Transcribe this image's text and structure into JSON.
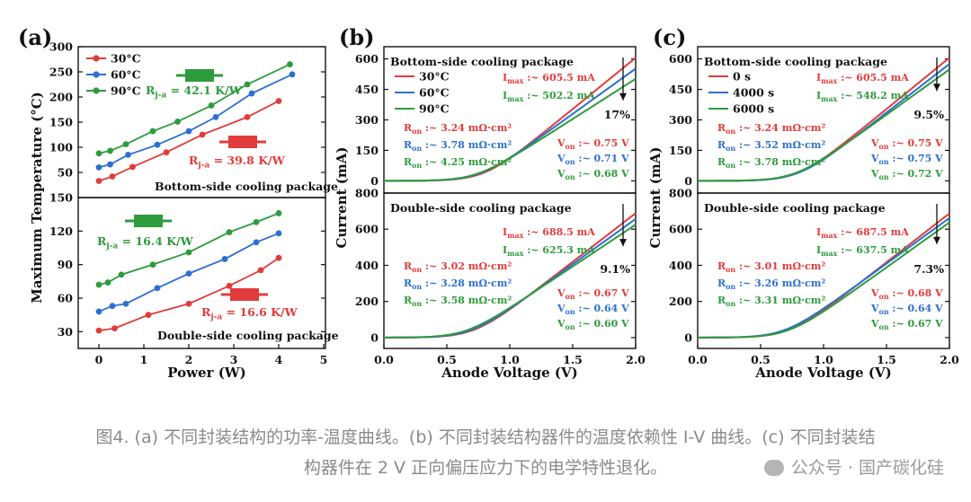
{
  "chart_data": [
    {
      "panel": "(a)",
      "type": "line",
      "xlabel": "Power (W)",
      "ylabel": "Maximum Temperature (°C)",
      "x_ticks": [
        "0",
        "1",
        "2",
        "3",
        "4",
        "5"
      ],
      "subplots": [
        {
          "title": "Bottom-side cooling package",
          "ylim": [
            0,
            300
          ],
          "y_ticks": [
            "50",
            "100",
            "150",
            "200",
            "250",
            "300"
          ],
          "legend": [
            "30°C",
            "60°C",
            "90°C"
          ],
          "series": [
            {
              "name": "30°C",
              "color": "#e23b3b",
              "x": [
                0,
                0.3,
                0.75,
                1.5,
                2.3,
                3.3,
                4.0
              ],
              "y": [
                33,
                42,
                61,
                90,
                125,
                160,
                192
              ]
            },
            {
              "name": "60°C",
              "color": "#2d6fd2",
              "x": [
                0,
                0.25,
                0.65,
                1.3,
                2.0,
                2.6,
                3.4,
                4.3
              ],
              "y": [
                60,
                66,
                85,
                105,
                132,
                160,
                207,
                245
              ]
            },
            {
              "name": "90°C",
              "color": "#2e9b3c",
              "x": [
                0,
                0.25,
                0.6,
                1.2,
                1.75,
                2.5,
                3.3,
                4.25
              ],
              "y": [
                88,
                93,
                106,
                132,
                151,
                183,
                225,
                265
              ]
            }
          ],
          "annotations": [
            {
              "text": "R",
              "sub": "j-a",
              "rest": " = 42.1 K/W",
              "color": "#2e9b3c"
            },
            {
              "text": "R",
              "sub": "j-a",
              "rest": " = 39.8 K/W",
              "color": "#e23b3b"
            }
          ]
        },
        {
          "title": "Double-side cooling  package",
          "ylim": [
            15,
            150
          ],
          "y_ticks": [
            "30",
            "60",
            "90",
            "120",
            "150"
          ],
          "series": [
            {
              "name": "30°C",
              "color": "#e23b3b",
              "x": [
                0,
                0.35,
                1.1,
                2.0,
                2.9,
                3.6,
                4.0
              ],
              "y": [
                31,
                33,
                45,
                55,
                71,
                85,
                96
              ]
            },
            {
              "name": "60°C",
              "color": "#2d6fd2",
              "x": [
                0,
                0.3,
                0.6,
                1.3,
                2.0,
                2.8,
                3.5,
                4.0
              ],
              "y": [
                48,
                53,
                55,
                69,
                82,
                95,
                110,
                118
              ]
            },
            {
              "name": "90°C",
              "color": "#2e9b3c",
              "x": [
                0,
                0.2,
                0.5,
                1.2,
                2.0,
                2.9,
                3.5,
                4.0
              ],
              "y": [
                72,
                74,
                81,
                90,
                101,
                119,
                128,
                136
              ]
            }
          ],
          "annotations": [
            {
              "text": "R",
              "sub": "j-a",
              "rest": " = 16.4 K/W",
              "color": "#2e9b3c"
            },
            {
              "text": "R",
              "sub": "j-a",
              "rest": " = 16.6 K/W",
              "color": "#e23b3b"
            }
          ]
        }
      ]
    },
    {
      "panel": "(b)",
      "type": "line",
      "xlabel": "Anode Voltage (V)",
      "ylabel": "Current (mA)",
      "xlim": [
        0,
        2.0
      ],
      "x_ticks": [
        "0.0",
        "0.5",
        "1.0",
        "1.5",
        "2.0"
      ],
      "subplots": [
        {
          "title": "Bottom-side cooling package",
          "ylim": [
            -60,
            660
          ],
          "y_ticks": [
            "0",
            "150",
            "300",
            "450",
            "600"
          ],
          "legend": [
            "30°C",
            "60°C",
            "90°C"
          ],
          "series": [
            {
              "name": "30°C",
              "color": "#e23b3b",
              "von": 0.75,
              "imax": 605.5
            },
            {
              "name": "60°C",
              "color": "#2d6fd2",
              "von": 0.71,
              "imax": 552
            },
            {
              "name": "90°C",
              "color": "#2e9b3c",
              "von": 0.68,
              "imax": 502.2
            }
          ],
          "imax_labels": [
            {
              "text": "I",
              "sub": "max",
              "rest": " :~ 605.5 mA",
              "color": "#e23b3b"
            },
            {
              "text": "I",
              "sub": "max",
              "rest": " :~ 502.2 mA",
              "color": "#2e9b3c"
            }
          ],
          "ron_labels": [
            {
              "text": "R",
              "sub": "on",
              "rest": " :~ 3.24 mΩ·cm²",
              "color": "#e23b3b"
            },
            {
              "text": "R",
              "sub": "on",
              "rest": " :~ 3.78 mΩ·cm²",
              "color": "#2d6fd2"
            },
            {
              "text": "R",
              "sub": "on",
              "rest": " :~ 4.25 mΩ·cm²",
              "color": "#2e9b3c"
            }
          ],
          "von_labels": [
            {
              "text": "V",
              "sub": "on",
              "rest": " :~ 0.75 V",
              "color": "#e23b3b"
            },
            {
              "text": "V",
              "sub": "on",
              "rest": " :~ 0.71 V",
              "color": "#2d6fd2"
            },
            {
              "text": "V",
              "sub": "on",
              "rest": " :~ 0.68 V",
              "color": "#2e9b3c"
            }
          ],
          "percent": "17%"
        },
        {
          "title": "Double-side cooling  package",
          "ylim": [
            -60,
            800
          ],
          "y_ticks": [
            "0",
            "200",
            "400",
            "600",
            "800"
          ],
          "series": [
            {
              "name": "30°C",
              "color": "#e23b3b",
              "von": 0.67,
              "imax": 688.5
            },
            {
              "name": "60°C",
              "color": "#2d6fd2",
              "von": 0.64,
              "imax": 657
            },
            {
              "name": "90°C",
              "color": "#2e9b3c",
              "von": 0.6,
              "imax": 625.3
            }
          ],
          "imax_labels": [
            {
              "text": "I",
              "sub": "max",
              "rest": " :~ 688.5 mA",
              "color": "#e23b3b"
            },
            {
              "text": "I",
              "sub": "max",
              "rest": " :~ 625.3 mA",
              "color": "#2e9b3c"
            }
          ],
          "ron_labels": [
            {
              "text": "R",
              "sub": "on",
              "rest": " :~ 3.02 mΩ·cm²",
              "color": "#e23b3b"
            },
            {
              "text": "R",
              "sub": "on",
              "rest": " :~ 3.28 mΩ·cm²",
              "color": "#2d6fd2"
            },
            {
              "text": "R",
              "sub": "on",
              "rest": " :~ 3.58 mΩ·cm²",
              "color": "#2e9b3c"
            }
          ],
          "von_labels": [
            {
              "text": "V",
              "sub": "on",
              "rest": " :~ 0.67 V",
              "color": "#e23b3b"
            },
            {
              "text": "V",
              "sub": "on",
              "rest": " :~ 0.64 V",
              "color": "#2d6fd2"
            },
            {
              "text": "V",
              "sub": "on",
              "rest": " :~ 0.60 V",
              "color": "#2e9b3c"
            }
          ],
          "percent": "9.1%"
        }
      ]
    },
    {
      "panel": "(c)",
      "type": "line",
      "xlabel": "Anode Voltage (V)",
      "ylabel": "Current (mA)",
      "xlim": [
        0,
        2.0
      ],
      "x_ticks": [
        "0.0",
        "0.5",
        "1.0",
        "1.5",
        "2.0"
      ],
      "subplots": [
        {
          "title": "Bottom-side cooling package",
          "ylim": [
            -60,
            660
          ],
          "y_ticks": [
            "0",
            "150",
            "300",
            "450",
            "600"
          ],
          "legend": [
            "0 s",
            "4000 s",
            "6000 s"
          ],
          "series": [
            {
              "name": "0 s",
              "color": "#e23b3b",
              "von": 0.75,
              "imax": 605.5
            },
            {
              "name": "4000 s",
              "color": "#2d6fd2",
              "von": 0.75,
              "imax": 575
            },
            {
              "name": "6000 s",
              "color": "#2e9b3c",
              "von": 0.72,
              "imax": 548.2
            }
          ],
          "imax_labels": [
            {
              "text": "I",
              "sub": "max",
              "rest": " :~ 605.5 mA",
              "color": "#e23b3b"
            },
            {
              "text": "I",
              "sub": "max",
              "rest": " :~ 548.2 mA",
              "color": "#2e9b3c"
            }
          ],
          "ron_labels": [
            {
              "text": "R",
              "sub": "on",
              "rest": " :~ 3.24 mΩ·cm²",
              "color": "#e23b3b"
            },
            {
              "text": "R",
              "sub": "on",
              "rest": " :~ 3.52 mΩ·cm²",
              "color": "#2d6fd2"
            },
            {
              "text": "R",
              "sub": "on",
              "rest": " :~ 3.78 mΩ·cm²",
              "color": "#2e9b3c"
            }
          ],
          "von_labels": [
            {
              "text": "V",
              "sub": "on",
              "rest": " :~ 0.75 V",
              "color": "#e23b3b"
            },
            {
              "text": "V",
              "sub": "on",
              "rest": " :~ 0.75 V",
              "color": "#2d6fd2"
            },
            {
              "text": "V",
              "sub": "on",
              "rest": " :~ 0.72 V",
              "color": "#2e9b3c"
            }
          ],
          "percent": "9.5%"
        },
        {
          "title": "Double-side cooling  package",
          "ylim": [
            -60,
            800
          ],
          "y_ticks": [
            "0",
            "200",
            "400",
            "600",
            "800"
          ],
          "series": [
            {
              "name": "0 s",
              "color": "#e23b3b",
              "von": 0.68,
              "imax": 687.5
            },
            {
              "name": "4000 s",
              "color": "#2d6fd2",
              "von": 0.64,
              "imax": 662
            },
            {
              "name": "6000 s",
              "color": "#2e9b3c",
              "von": 0.67,
              "imax": 637.5
            }
          ],
          "imax_labels": [
            {
              "text": "I",
              "sub": "max",
              "rest": " :~ 687.5 mA",
              "color": "#e23b3b"
            },
            {
              "text": "I",
              "sub": "max",
              "rest": " :~ 637.5 mA",
              "color": "#2e9b3c"
            }
          ],
          "ron_labels": [
            {
              "text": "R",
              "sub": "on",
              "rest": " :~ 3.01 mΩ·cm²",
              "color": "#e23b3b"
            },
            {
              "text": "R",
              "sub": "on",
              "rest": " :~ 3.26 mΩ·cm²",
              "color": "#2d6fd2"
            },
            {
              "text": "R",
              "sub": "on",
              "rest": " :~ 3.31 mΩ·cm²",
              "color": "#2e9b3c"
            }
          ],
          "von_labels": [
            {
              "text": "V",
              "sub": "on",
              "rest": " :~ 0.68 V",
              "color": "#e23b3b"
            },
            {
              "text": "V",
              "sub": "on",
              "rest": " :~ 0.64 V",
              "color": "#2d6fd2"
            },
            {
              "text": "V",
              "sub": "on",
              "rest": " :~ 0.67 V",
              "color": "#2e9b3c"
            }
          ],
          "percent": "7.3%"
        }
      ]
    }
  ],
  "caption": {
    "line1": "图4. (a) 不同封装结构的功率-温度曲线。(b) 不同封装结构器件的温度依赖性 I-V 曲线。(c) 不同封装结",
    "line2": "构器件在 2 V 正向偏压应力下的电学特性退化。"
  },
  "watermark": "公众号 · 国产碳化硅",
  "colors": {
    "red": "#e23b3b",
    "blue": "#2d6fd2",
    "green": "#2e9b3c",
    "caption": "#8a8a8a"
  }
}
